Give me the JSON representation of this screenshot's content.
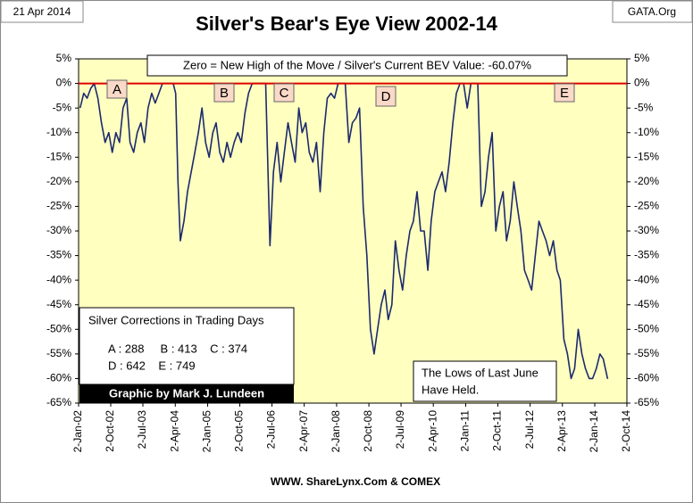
{
  "chart_data": {
    "type": "line",
    "title": "Silver's Bear's Eye View 2002-14",
    "date_label": "21 Apr 2014",
    "source_top": "GATA.Org",
    "source_bottom": "WWW. ShareLynx.Com & COMEX",
    "annotations": {
      "zero_note": "Zero = New High of the Move / Silver's Current BEV Value: -60.07%",
      "letters": [
        "A",
        "B",
        "C",
        "D",
        "E"
      ],
      "corrections_title": "Silver Corrections in Trading Days",
      "corrections_line1": "A : 288     B : 413    C : 374",
      "corrections_line2": "D : 642    E : 749",
      "credit": "Graphic by Mark J. Lundeen",
      "lows_note": [
        "The Lows of Last June",
        "Have Held."
      ]
    },
    "grid": false,
    "plot_background": "#ffffc0",
    "reference_line": {
      "value": 0,
      "color": "#e00000"
    },
    "xlim": [
      "2002-01-02",
      "2014-10-02"
    ],
    "xticks": [
      {
        "value": "2002-01-02",
        "label": "2-Jan-02"
      },
      {
        "value": "2002-10-02",
        "label": "2-Oct-02"
      },
      {
        "value": "2003-07-02",
        "label": "2-Jul-03"
      },
      {
        "value": "2004-04-02",
        "label": "2-Apr-04"
      },
      {
        "value": "2005-01-02",
        "label": "2-Jan-05"
      },
      {
        "value": "2005-10-02",
        "label": "2-Oct-05"
      },
      {
        "value": "2006-07-02",
        "label": "2-Jul-06"
      },
      {
        "value": "2007-04-02",
        "label": "2-Apr-07"
      },
      {
        "value": "2008-01-02",
        "label": "2-Jan-08"
      },
      {
        "value": "2008-10-02",
        "label": "2-Oct-08"
      },
      {
        "value": "2009-07-02",
        "label": "2-Jul-09"
      },
      {
        "value": "2010-04-02",
        "label": "2-Apr-10"
      },
      {
        "value": "2011-01-02",
        "label": "2-Jan-11"
      },
      {
        "value": "2011-10-02",
        "label": "2-Oct-11"
      },
      {
        "value": "2012-07-02",
        "label": "2-Jul-12"
      },
      {
        "value": "2013-04-02",
        "label": "2-Apr-13"
      },
      {
        "value": "2014-01-02",
        "label": "2-Jan-14"
      },
      {
        "value": "2014-10-02",
        "label": "2-Oct-14"
      }
    ],
    "ylim": [
      -65,
      5
    ],
    "yticks": [
      {
        "value": 5,
        "label": "5%"
      },
      {
        "value": 0,
        "label": "0%"
      },
      {
        "value": -5,
        "label": "-5%"
      },
      {
        "value": -10,
        "label": "-10%"
      },
      {
        "value": -15,
        "label": "-15%"
      },
      {
        "value": -20,
        "label": "-20%"
      },
      {
        "value": -25,
        "label": "-25%"
      },
      {
        "value": -30,
        "label": "-30%"
      },
      {
        "value": -35,
        "label": "-35%"
      },
      {
        "value": -40,
        "label": "-40%"
      },
      {
        "value": -45,
        "label": "-45%"
      },
      {
        "value": -50,
        "label": "-50%"
      },
      {
        "value": -55,
        "label": "-55%"
      },
      {
        "value": -60,
        "label": "-60%"
      },
      {
        "value": -65,
        "label": "-65%"
      }
    ],
    "series": [
      {
        "name": "Silver BEV",
        "color": "#1c2a6e",
        "x": [
          "2002-01-15",
          "2002-02-15",
          "2002-03-15",
          "2002-04-15",
          "2002-05-15",
          "2002-06-15",
          "2002-07-15",
          "2002-08-15",
          "2002-09-15",
          "2002-10-15",
          "2002-11-15",
          "2002-12-15",
          "2003-01-15",
          "2003-02-15",
          "2003-03-15",
          "2003-04-15",
          "2003-05-15",
          "2003-06-15",
          "2003-07-15",
          "2003-08-15",
          "2003-09-15",
          "2003-10-15",
          "2003-11-15",
          "2003-12-15",
          "2004-01-15",
          "2004-02-15",
          "2004-03-15",
          "2004-04-05",
          "2004-04-25",
          "2004-05-15",
          "2004-06-15",
          "2004-07-15",
          "2004-08-15",
          "2004-09-15",
          "2004-10-15",
          "2004-11-15",
          "2004-12-15",
          "2005-01-15",
          "2005-02-15",
          "2005-03-15",
          "2005-04-15",
          "2005-05-15",
          "2005-06-15",
          "2005-07-15",
          "2005-08-15",
          "2005-09-15",
          "2005-10-15",
          "2005-11-15",
          "2005-12-15",
          "2006-01-15",
          "2006-02-15",
          "2006-03-15",
          "2006-04-15",
          "2006-05-10",
          "2006-06-01",
          "2006-06-15",
          "2006-07-15",
          "2006-08-15",
          "2006-09-15",
          "2006-10-15",
          "2006-11-15",
          "2006-12-15",
          "2007-01-15",
          "2007-02-15",
          "2007-03-15",
          "2007-04-15",
          "2007-05-15",
          "2007-06-15",
          "2007-07-15",
          "2007-08-15",
          "2007-09-15",
          "2007-10-15",
          "2007-11-15",
          "2007-12-15",
          "2008-01-15",
          "2008-02-15",
          "2008-03-15",
          "2008-04-15",
          "2008-05-15",
          "2008-06-15",
          "2008-07-15",
          "2008-08-15",
          "2008-09-15",
          "2008-10-15",
          "2008-11-15",
          "2008-12-15",
          "2009-01-15",
          "2009-02-15",
          "2009-03-15",
          "2009-04-15",
          "2009-05-15",
          "2009-06-15",
          "2009-07-15",
          "2009-08-15",
          "2009-09-15",
          "2009-10-15",
          "2009-11-15",
          "2009-12-15",
          "2010-01-15",
          "2010-02-15",
          "2010-03-15",
          "2010-04-15",
          "2010-05-15",
          "2010-06-15",
          "2010-07-15",
          "2010-08-15",
          "2010-09-15",
          "2010-10-15",
          "2010-11-15",
          "2010-12-15",
          "2011-01-15",
          "2011-02-15",
          "2011-03-15",
          "2011-04-15",
          "2011-05-15",
          "2011-06-15",
          "2011-07-15",
          "2011-08-15",
          "2011-09-15",
          "2011-10-15",
          "2011-11-15",
          "2011-12-15",
          "2012-01-15",
          "2012-02-15",
          "2012-03-15",
          "2012-04-15",
          "2012-05-15",
          "2012-06-15",
          "2012-07-15",
          "2012-08-15",
          "2012-09-15",
          "2012-10-15",
          "2012-11-15",
          "2012-12-15",
          "2013-01-15",
          "2013-02-15",
          "2013-03-15",
          "2013-04-15",
          "2013-05-15",
          "2013-06-15",
          "2013-07-15",
          "2013-08-15",
          "2013-09-15",
          "2013-10-15",
          "2013-11-15",
          "2013-12-15",
          "2014-01-15",
          "2014-02-15",
          "2014-03-15",
          "2014-04-21"
        ],
        "values": [
          -5,
          -2,
          -3,
          -1,
          0,
          -3,
          -8,
          -12,
          -10,
          -14,
          -10,
          -12,
          -5,
          -3,
          -12,
          -14,
          -10,
          -8,
          -12,
          -5,
          -2,
          -4,
          -2,
          0,
          0,
          0,
          0,
          -2,
          -20,
          -32,
          -28,
          -22,
          -18,
          -14,
          -10,
          -5,
          -12,
          -15,
          -10,
          -8,
          -14,
          -16,
          -12,
          -15,
          -12,
          -10,
          -12,
          -6,
          -2,
          0,
          0,
          0,
          0,
          0,
          -20,
          -33,
          -18,
          -12,
          -20,
          -14,
          -8,
          -12,
          -16,
          -5,
          -10,
          -8,
          -14,
          -16,
          -12,
          -22,
          -10,
          -3,
          -2,
          -3,
          0,
          0,
          0,
          -12,
          -8,
          -7,
          -5,
          -25,
          -35,
          -50,
          -55,
          -50,
          -45,
          -42,
          -48,
          -45,
          -32,
          -38,
          -42,
          -35,
          -30,
          -28,
          -22,
          -30,
          -30,
          -38,
          -28,
          -22,
          -20,
          -18,
          -22,
          -16,
          -8,
          -2,
          0,
          0,
          -5,
          0,
          0,
          0,
          -25,
          -22,
          -15,
          -10,
          -30,
          -25,
          -22,
          -32,
          -28,
          -20,
          -25,
          -30,
          -38,
          -40,
          -42,
          -35,
          -28,
          -30,
          -32,
          -35,
          -32,
          -38,
          -40,
          -52,
          -55,
          -60,
          -58,
          -50,
          -55,
          -58,
          -60,
          -60,
          -58,
          -55,
          -56,
          -60.07
        ]
      }
    ]
  }
}
